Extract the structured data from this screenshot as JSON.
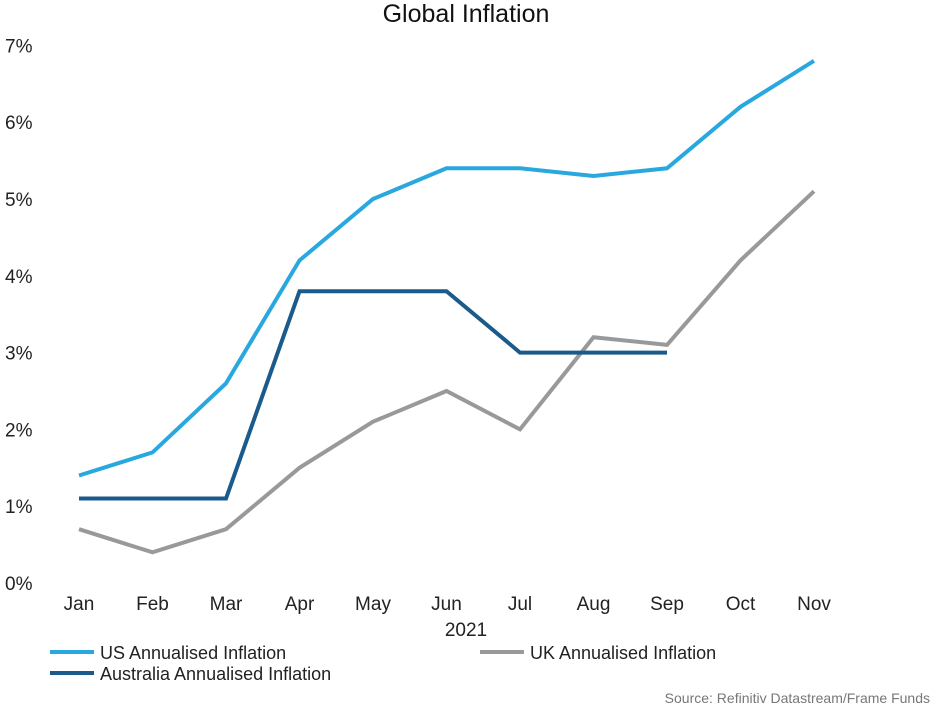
{
  "chart_data": {
    "type": "line",
    "title": "Global Inflation",
    "xlabel": "2021",
    "ylabel": "",
    "categories": [
      "Jan",
      "Feb",
      "Mar",
      "Apr",
      "May",
      "Jun",
      "Jul",
      "Aug",
      "Sep",
      "Oct",
      "Nov"
    ],
    "y_ticks": [
      "0%",
      "1%",
      "2%",
      "3%",
      "4%",
      "5%",
      "6%",
      "7%"
    ],
    "ylim": [
      0,
      7
    ],
    "grid": false,
    "legend_position": "bottom",
    "series": [
      {
        "name": "US Annualised Inflation",
        "color": "#29a8e0",
        "values": [
          1.4,
          1.7,
          2.6,
          4.2,
          5.0,
          5.4,
          5.4,
          5.3,
          5.4,
          6.2,
          6.8
        ]
      },
      {
        "name": "UK Annualised Inflation",
        "color": "#999999",
        "values": [
          0.7,
          0.4,
          0.7,
          1.5,
          2.1,
          2.5,
          2.0,
          3.2,
          3.1,
          4.2,
          5.1
        ]
      },
      {
        "name": "Australia Annualised Inflation",
        "color": "#1a5b8c",
        "values": [
          1.1,
          1.1,
          1.1,
          3.8,
          3.8,
          3.8,
          3.0,
          3.0,
          3.0,
          null,
          null
        ]
      }
    ],
    "source": "Source: Refinitiv Datastream/Frame Funds"
  }
}
